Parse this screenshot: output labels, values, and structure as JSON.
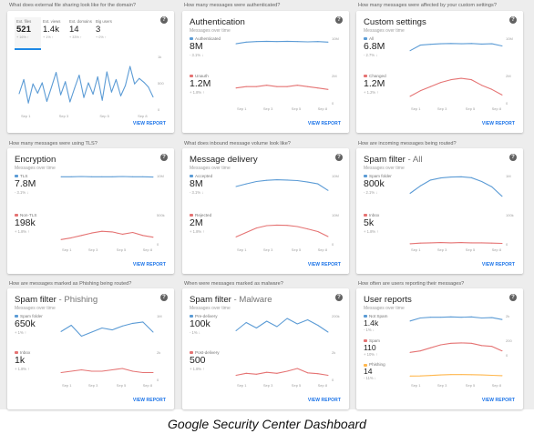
{
  "caption": "Google Security Center Dashboard",
  "colors": {
    "blue": "#5b9bd5",
    "red": "#e57373",
    "yellow": "#ffb74d",
    "link": "#1a73e8"
  },
  "xticks": [
    "Sep 1",
    "Sep 3",
    "Sep 5",
    "Sep 8"
  ],
  "view_report": "VIEW REPORT",
  "cards": [
    {
      "question": "What does external file sharing look like for the domain?",
      "tabs": [
        {
          "label": "Ext. files",
          "value": "521",
          "change": "+ 16% ↑"
        },
        {
          "label": "Ext. views",
          "value": "1.4k",
          "change": "+ 1% ↑"
        },
        {
          "label": "Ext. domains",
          "value": "14",
          "change": "+ 33% ↑"
        },
        {
          "label": "Big users",
          "value": "3",
          "change": "+ 0% ↑"
        }
      ],
      "yticks": [
        "1k",
        "500",
        "0"
      ],
      "chart_data": {
        "type": "line",
        "x": [
          "Sep 1",
          "",
          "",
          "",
          "",
          "",
          "",
          "",
          "",
          "",
          "",
          "",
          "",
          "",
          "",
          "",
          "",
          "",
          "",
          "",
          "",
          "",
          "",
          "",
          "",
          "",
          "",
          "",
          "",
          "Sep 8"
        ],
        "ylim": [
          0,
          1000
        ],
        "series": [
          {
            "values": [
              300,
              560,
              130,
              480,
              310,
              500,
              160,
              420,
              690,
              280,
              520,
              150,
              400,
              640,
              230,
              500,
              290,
              610,
              180,
              700,
              330,
              560,
              260,
              450,
              800,
              480,
              580,
              510,
              420,
              240
            ]
          }
        ]
      }
    },
    {
      "question": "How many messages were authenticated?",
      "title": "Authentication",
      "title_sub": "",
      "subtitle": "Messages over time",
      "rows": [
        {
          "label": "Authenticated",
          "value": "8M",
          "change": "- 3.1% ↓",
          "yticks": [
            "10M",
            ""
          ]
        },
        {
          "label": "Unauth",
          "value": "1.2M",
          "change": "+ 1.8% ↑",
          "yticks": [
            "2M",
            "0"
          ]
        }
      ],
      "chart_data": {
        "type": "line",
        "ylim": [
          0,
          10
        ],
        "series": [
          {
            "values": [
              8.0,
              8.6,
              8.8,
              8.9,
              8.8,
              8.9,
              8.8,
              8.7,
              8.8,
              8.6
            ],
            "ylim": [
              0,
              10
            ]
          },
          {
            "values": [
              1.1,
              1.2,
              1.2,
              1.3,
              1.2,
              1.2,
              1.3,
              1.2,
              1.1,
              1.0
            ],
            "ylim": [
              0,
              2
            ]
          }
        ]
      }
    },
    {
      "question": "How many messages were affected by your custom settings?",
      "title": "Custom settings",
      "title_sub": "",
      "subtitle": "Messages over time",
      "rows": [
        {
          "label": "All",
          "value": "6.8M",
          "change": "- 2.7% ↓",
          "yticks": [
            "10M",
            ""
          ]
        },
        {
          "label": "Changed",
          "value": "1.2M",
          "change": "+ 1.2% ↑",
          "yticks": [
            "2M",
            "0"
          ]
        }
      ],
      "chart_data": {
        "type": "line",
        "series": [
          {
            "values": [
              5.5,
              7.5,
              7.8,
              8.0,
              8.1,
              8.0,
              8.1,
              7.9,
              8.0,
              7.2
            ],
            "ylim": [
              0,
              10
            ]
          },
          {
            "values": [
              0.5,
              0.9,
              1.2,
              1.5,
              1.7,
              1.8,
              1.7,
              1.3,
              1.0,
              0.6
            ],
            "ylim": [
              0,
              2
            ]
          }
        ]
      }
    },
    {
      "question": "How many messages were using TLS?",
      "title": "Encryption",
      "title_sub": "",
      "subtitle": "Messages over time",
      "rows": [
        {
          "label": "TLS",
          "value": "7.8M",
          "change": "- 3.1% ↓",
          "yticks": [
            "10M",
            ""
          ]
        },
        {
          "label": "Non-TLS",
          "value": "198k",
          "change": "+ 1.8% ↑",
          "yticks": [
            "500k",
            "0"
          ]
        }
      ],
      "chart_data": {
        "type": "line",
        "series": [
          {
            "values": [
              9.6,
              9.6,
              9.7,
              9.6,
              9.6,
              9.6,
              9.7,
              9.6,
              9.6,
              9.5
            ],
            "ylim": [
              0,
              10
            ]
          },
          {
            "values": [
              80,
              110,
              150,
              190,
              220,
              210,
              170,
              200,
              150,
              120
            ],
            "ylim": [
              0,
              500
            ]
          }
        ]
      }
    },
    {
      "question": "What does inbound message volume look like?",
      "title": "Message delivery",
      "title_sub": "",
      "subtitle": "Messages over time",
      "rows": [
        {
          "label": "Accepted",
          "value": "8M",
          "change": "- 3.1% ↓",
          "yticks": [
            "10M",
            ""
          ]
        },
        {
          "label": "Rejected",
          "value": "2M",
          "change": "+ 1.8% ↑",
          "yticks": [
            "10M",
            "0"
          ]
        }
      ],
      "chart_data": {
        "type": "line",
        "series": [
          {
            "values": [
              6.3,
              7.2,
              8.0,
              8.4,
              8.6,
              8.5,
              8.3,
              7.8,
              7.2,
              5.0
            ],
            "ylim": [
              0,
              10
            ]
          },
          {
            "values": [
              2.5,
              4.0,
              5.5,
              6.3,
              6.5,
              6.4,
              6.0,
              5.2,
              4.3,
              2.6
            ],
            "ylim": [
              0,
              10
            ]
          }
        ]
      }
    },
    {
      "question": "How are incoming messages being routed?",
      "title": "Spam filter",
      "title_sub": " - All",
      "subtitle": "Messages over time",
      "rows": [
        {
          "label": "Spam folder",
          "value": "800k",
          "change": "- 2.1% ↓",
          "yticks": [
            "1M",
            ""
          ]
        },
        {
          "label": "Inbox",
          "value": "5k",
          "change": "+ 1.8% ↑",
          "yticks": [
            "100k",
            "0"
          ]
        }
      ],
      "chart_data": {
        "type": "line",
        "series": [
          {
            "values": [
              0.4,
              0.65,
              0.85,
              0.92,
              0.95,
              0.96,
              0.93,
              0.8,
              0.62,
              0.3
            ],
            "ylim": [
              0,
              1
            ]
          },
          {
            "values": [
              2,
              4,
              5,
              6,
              5,
              6,
              5,
              5,
              4,
              3
            ],
            "ylim": [
              0,
              100
            ]
          }
        ]
      }
    },
    {
      "question": "How are messages marked as Phishing being routed?",
      "title": "Spam filter",
      "title_sub": " - Phishing",
      "subtitle": "Messages over time",
      "rows": [
        {
          "label": "Spam folder",
          "value": "650k",
          "change": "+ 1% ↑",
          "yticks": [
            "1M",
            ""
          ]
        },
        {
          "label": "Inbox",
          "value": "1k",
          "change": "+ 1.8% ↑",
          "yticks": [
            "2k",
            "0"
          ]
        }
      ],
      "chart_data": {
        "type": "line",
        "series": [
          {
            "values": [
              0.42,
              0.65,
              0.25,
              0.4,
              0.55,
              0.48,
              0.62,
              0.72,
              0.77,
              0.4
            ],
            "ylim": [
              0,
              1
            ]
          },
          {
            "values": [
              0.5,
              0.6,
              0.7,
              0.6,
              0.6,
              0.7,
              0.8,
              0.6,
              0.5,
              0.5
            ],
            "ylim": [
              0,
              2
            ]
          }
        ]
      }
    },
    {
      "question": "When were messages marked as malware?",
      "title": "Spam filter",
      "title_sub": " - Malware",
      "subtitle": "Messages over time",
      "rows": [
        {
          "label": "Pre-delivery",
          "value": "100k",
          "change": "- 1% ↓",
          "yticks": [
            "200k",
            ""
          ]
        },
        {
          "label": "Post-delivery",
          "value": "500",
          "change": "+ 1.8% ↑",
          "yticks": [
            "2k",
            "0"
          ]
        }
      ],
      "chart_data": {
        "type": "line",
        "series": [
          {
            "values": [
              90,
              150,
              110,
              160,
              120,
              180,
              140,
              170,
              130,
              80
            ],
            "ylim": [
              0,
              200
            ]
          },
          {
            "values": [
              300,
              450,
              380,
              520,
              450,
              600,
              800,
              480,
              420,
              300
            ],
            "ylim": [
              0,
              2000
            ]
          }
        ]
      }
    },
    {
      "question": "How often are users reporting their messages?",
      "title": "User reports",
      "title_sub": "",
      "subtitle": "Messages over time",
      "rows": [
        {
          "label": "Not Spam",
          "value": "1.4k",
          "change": "- 1% ↓",
          "yticks": [
            "2k",
            ""
          ]
        },
        {
          "label": "Spam",
          "value": "110",
          "change": "+ 10% ↑",
          "yticks": [
            "200",
            "0"
          ]
        },
        {
          "label": "Phishing",
          "value": "14",
          "change": "- 11% ↓",
          "yticks": [
            ""
          ]
        }
      ],
      "chart_data": {
        "type": "line",
        "series": [
          {
            "values": [
              1.3,
              1.7,
              1.8,
              1.8,
              1.85,
              1.8,
              1.85,
              1.7,
              1.75,
              1.5
            ],
            "ylim": [
              0,
              2
            ]
          },
          {
            "values": [
              40,
              60,
              100,
              140,
              160,
              165,
              160,
              130,
              120,
              60
            ],
            "ylim": [
              0,
              200
            ]
          },
          {
            "values": [
              40,
              42,
              48,
              55,
              60,
              60,
              58,
              55,
              50,
              45
            ],
            "ylim": [
              0,
              200
            ]
          }
        ]
      }
    }
  ]
}
